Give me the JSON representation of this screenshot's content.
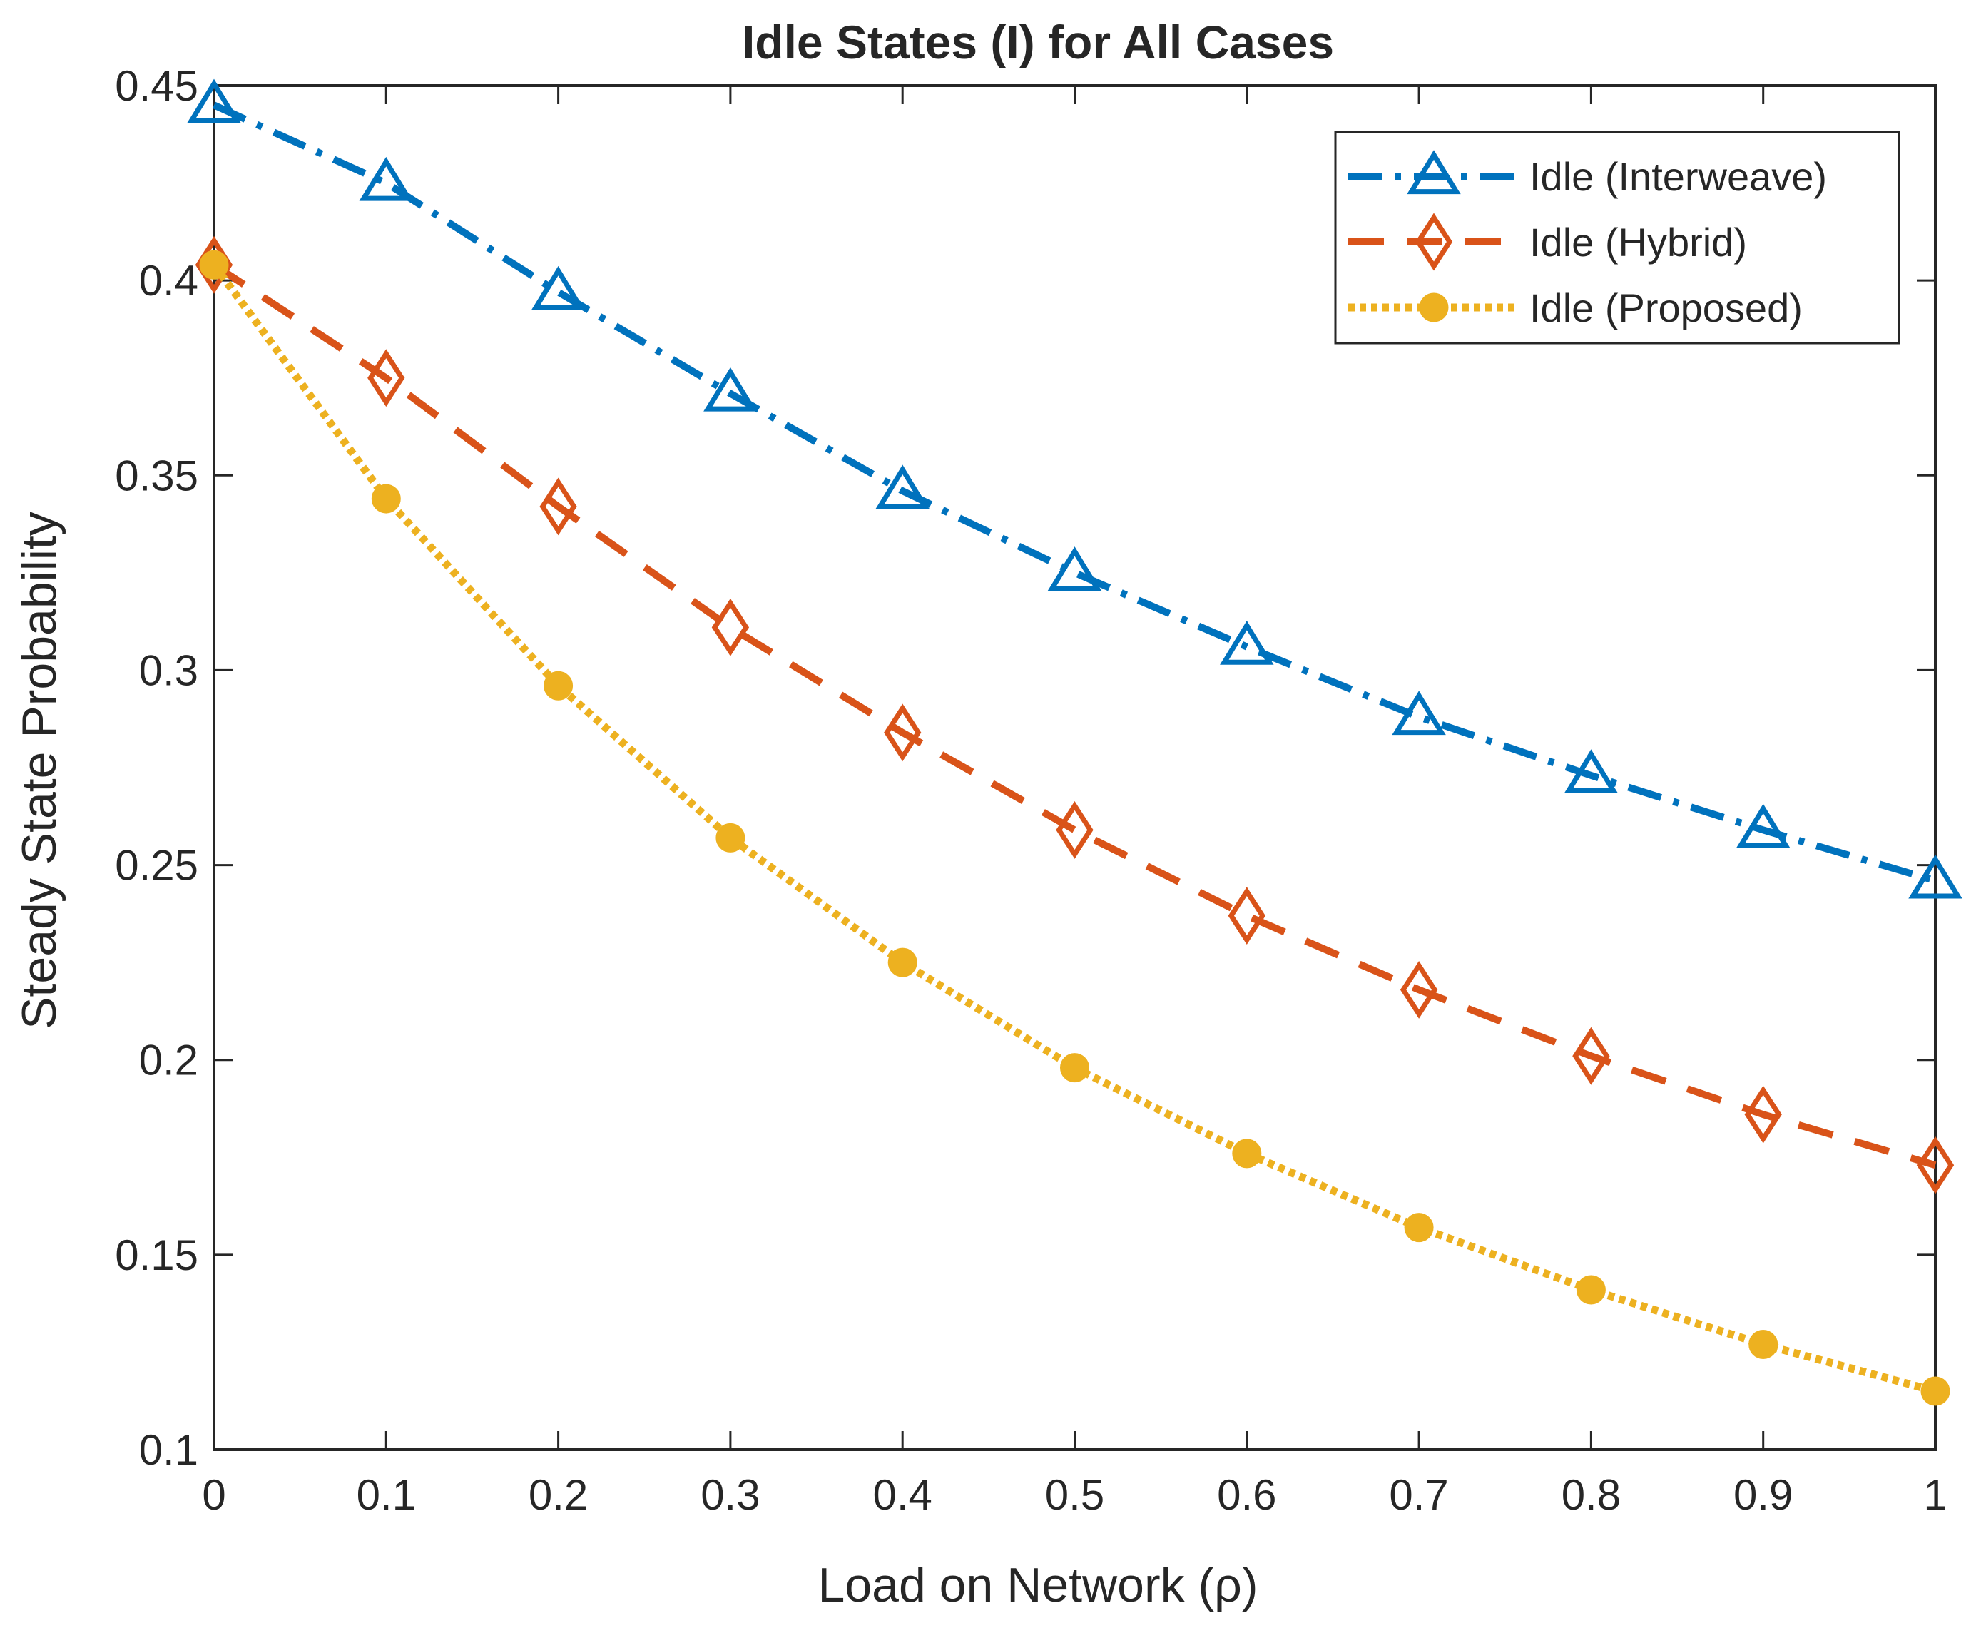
{
  "chart_data": {
    "type": "line",
    "title": "Idle States (I) for All Cases",
    "xlabel": "Load on Network (ρ)",
    "ylabel": "Steady State Probability",
    "xlim": [
      0,
      1
    ],
    "ylim": [
      0.1,
      0.45
    ],
    "x": [
      0,
      0.1,
      0.2,
      0.3,
      0.4,
      0.5,
      0.6,
      0.7,
      0.8,
      0.9,
      1
    ],
    "xticks": [
      0,
      0.1,
      0.2,
      0.3,
      0.4,
      0.5,
      0.6,
      0.7,
      0.8,
      0.9,
      1
    ],
    "xtick_labels": [
      "0",
      "0.1",
      "0.2",
      "0.3",
      "0.4",
      "0.5",
      "0.6",
      "0.7",
      "0.8",
      "0.9",
      "1"
    ],
    "yticks": [
      0.1,
      0.15,
      0.2,
      0.25,
      0.3,
      0.35,
      0.4,
      0.45
    ],
    "ytick_labels": [
      "0.1",
      "0.15",
      "0.2",
      "0.25",
      "0.3",
      "0.35",
      "0.4",
      "0.45"
    ],
    "grid": false,
    "legend_position": "top-right",
    "series": [
      {
        "name": "Idle (Interweave)",
        "color": "#0072BD",
        "line_style": "dash-dot",
        "marker": "triangle",
        "values": [
          0.445,
          0.425,
          0.397,
          0.371,
          0.346,
          0.325,
          0.306,
          0.288,
          0.273,
          0.259,
          0.246
        ]
      },
      {
        "name": "Idle (Hybrid)",
        "color": "#D95319",
        "line_style": "dashed",
        "marker": "diamond",
        "values": [
          0.404,
          0.375,
          0.342,
          0.311,
          0.284,
          0.259,
          0.237,
          0.218,
          0.201,
          0.186,
          0.173
        ]
      },
      {
        "name": "Idle (Proposed)",
        "color": "#EDB120",
        "line_style": "dotted",
        "marker": "circle",
        "values": [
          0.404,
          0.344,
          0.296,
          0.257,
          0.225,
          0.198,
          0.176,
          0.157,
          0.141,
          0.127,
          0.115
        ]
      }
    ]
  }
}
